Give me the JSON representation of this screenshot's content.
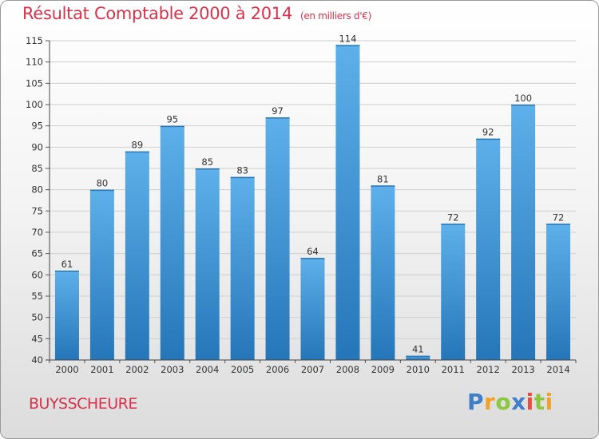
{
  "header": {
    "title": "Résultat Comptable 2000 à 2014",
    "unit": "(en milliers d'€)"
  },
  "commune": "BUYSSCHEURE",
  "logo": {
    "text": "Proxiti",
    "letters": [
      {
        "ch": "P",
        "color": "#3d7fc9"
      },
      {
        "ch": "r",
        "color": "#f0a22a"
      },
      {
        "ch": "o",
        "color": "#8dc63f"
      },
      {
        "ch": "x",
        "color": "#3d7fc9"
      },
      {
        "ch": "i",
        "color": "#e94e43"
      },
      {
        "ch": "t",
        "color": "#8dc63f"
      },
      {
        "ch": "i",
        "color": "#f0a22a"
      }
    ]
  },
  "colors": {
    "title": "#d8324b",
    "bar_light": "#5eb0ea",
    "bar_dark": "#2576b8",
    "grid": "#cfcfcf"
  },
  "chart_data": {
    "type": "bar",
    "title": "Résultat Comptable 2000 à 2014",
    "ylabel": "(en milliers d'€)",
    "xlabel": "",
    "categories": [
      "2000",
      "2001",
      "2002",
      "2003",
      "2004",
      "2005",
      "2006",
      "2007",
      "2008",
      "2009",
      "2010",
      "2011",
      "2012",
      "2013",
      "2014"
    ],
    "values": [
      61,
      80,
      89,
      95,
      85,
      83,
      97,
      64,
      114,
      81,
      41,
      72,
      92,
      100,
      72
    ],
    "ylim": [
      40,
      115
    ],
    "yticks": [
      40,
      45,
      50,
      55,
      60,
      65,
      70,
      75,
      80,
      85,
      90,
      95,
      100,
      105,
      110,
      115
    ],
    "grid": true
  }
}
